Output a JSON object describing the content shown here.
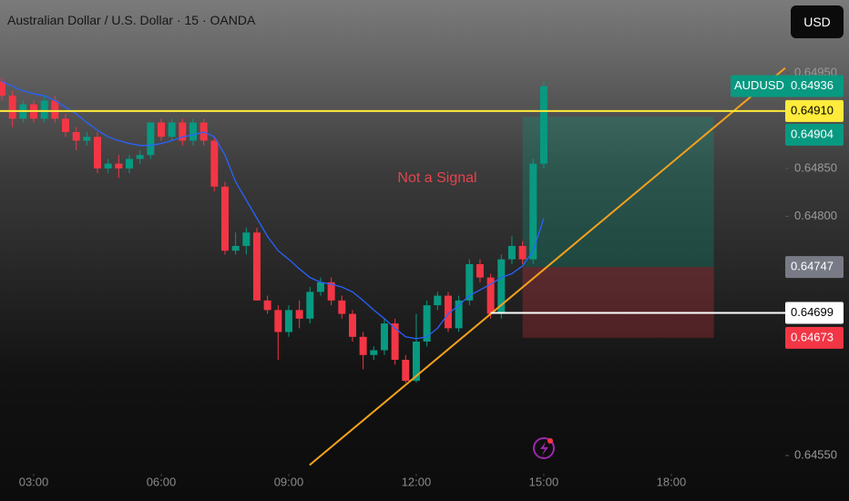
{
  "header": {
    "title": "Australian Dollar / U.S. Dollar · 15 · OANDA",
    "currency_button": "USD"
  },
  "chart_data": {
    "type": "candlestick",
    "symbol": "AUDUSD",
    "x": [
      2.25,
      2.5,
      2.75,
      3,
      3.25,
      3.5,
      3.75,
      4,
      4.25,
      4.5,
      4.75,
      5,
      5.25,
      5.5,
      5.75,
      6,
      6.25,
      6.5,
      6.75,
      7,
      7.25,
      7.5,
      7.75,
      8,
      8.25,
      8.5,
      8.75,
      9,
      9.25,
      9.5,
      9.75,
      10,
      10.25,
      10.5,
      10.75,
      11,
      11.25,
      11.5,
      11.75,
      12,
      12.25,
      12.5,
      12.75,
      13,
      13.25,
      13.5,
      13.75,
      14,
      14.25,
      14.5,
      14.75,
      15
    ],
    "open": [
      0.64941,
      0.64926,
      0.64902,
      0.64917,
      0.64902,
      0.64921,
      0.64902,
      0.64888,
      0.64879,
      0.64883,
      0.6485,
      0.64855,
      0.6485,
      0.6486,
      0.64864,
      0.64898,
      0.64883,
      0.64898,
      0.64879,
      0.64898,
      0.64879,
      0.64831,
      0.64764,
      0.64769,
      0.64783,
      0.64712,
      0.64702,
      0.64679,
      0.64702,
      0.64693,
      0.64721,
      0.64731,
      0.64712,
      0.64698,
      0.64674,
      0.64655,
      0.6466,
      0.64688,
      0.6465,
      0.64628,
      0.64669,
      0.64707,
      0.64717,
      0.64683,
      0.64712,
      0.6475,
      0.64736,
      0.64698,
      0.64755,
      0.64769,
      0.64755,
      0.64855
    ],
    "high": [
      0.64945,
      0.64931,
      0.64921,
      0.64921,
      0.64926,
      0.64926,
      0.64907,
      0.64893,
      0.64888,
      0.64888,
      0.6486,
      0.64864,
      0.64864,
      0.64869,
      0.64898,
      0.64902,
      0.64902,
      0.64902,
      0.64902,
      0.64902,
      0.64883,
      0.64836,
      0.64783,
      0.64788,
      0.64788,
      0.64717,
      0.64707,
      0.64707,
      0.64712,
      0.64726,
      0.64736,
      0.64736,
      0.64717,
      0.64702,
      0.64679,
      0.64664,
      0.64693,
      0.64693,
      0.64655,
      0.64698,
      0.64712,
      0.64721,
      0.64721,
      0.64717,
      0.64755,
      0.64755,
      0.6474,
      0.6476,
      0.64779,
      0.64774,
      0.6486,
      0.64941
    ],
    "low": [
      0.64921,
      0.64893,
      0.64898,
      0.64898,
      0.64898,
      0.64898,
      0.64883,
      0.64869,
      0.64874,
      0.64845,
      0.64845,
      0.6484,
      0.64845,
      0.64855,
      0.6486,
      0.64879,
      0.64879,
      0.64874,
      0.64874,
      0.64874,
      0.64826,
      0.6476,
      0.6476,
      0.6476,
      0.64712,
      0.64698,
      0.6465,
      0.64674,
      0.64683,
      0.64688,
      0.64717,
      0.64707,
      0.64693,
      0.64669,
      0.6464,
      0.6465,
      0.64655,
      0.64645,
      0.64626,
      0.64626,
      0.64664,
      0.64702,
      0.64679,
      0.64679,
      0.64707,
      0.64731,
      0.64693,
      0.64693,
      0.6475,
      0.6475,
      0.6475,
      0.6485
    ],
    "close": [
      0.64926,
      0.64902,
      0.64917,
      0.64902,
      0.64921,
      0.64902,
      0.64888,
      0.64879,
      0.64883,
      0.6485,
      0.64855,
      0.6485,
      0.6486,
      0.64864,
      0.64898,
      0.64883,
      0.64898,
      0.64879,
      0.64898,
      0.64879,
      0.64831,
      0.64764,
      0.64769,
      0.64783,
      0.64712,
      0.64702,
      0.64679,
      0.64702,
      0.64693,
      0.64721,
      0.64731,
      0.64712,
      0.64698,
      0.64674,
      0.64655,
      0.6466,
      0.64688,
      0.6465,
      0.64628,
      0.64669,
      0.64707,
      0.64717,
      0.64683,
      0.64712,
      0.6475,
      0.64736,
      0.64698,
      0.64755,
      0.64769,
      0.64755,
      0.64855,
      0.64936
    ],
    "up_color": "#089981",
    "down_color": "#f23645",
    "moving_average": {
      "color": "#2962ff",
      "values": [
        0.64941,
        0.64936,
        0.64931,
        0.64928,
        0.64926,
        0.64921,
        0.64914,
        0.64907,
        0.64898,
        0.6489,
        0.64883,
        0.64879,
        0.64876,
        0.64874,
        0.64874,
        0.64876,
        0.64879,
        0.64883,
        0.64885,
        0.64888,
        0.64883,
        0.64864,
        0.64836,
        0.64817,
        0.64798,
        0.64779,
        0.64764,
        0.64755,
        0.64745,
        0.64736,
        0.64731,
        0.64729,
        0.64726,
        0.64721,
        0.64712,
        0.64702,
        0.64693,
        0.64683,
        0.64674,
        0.64672,
        0.64674,
        0.64683,
        0.64698,
        0.64707,
        0.64717,
        0.64723,
        0.64729,
        0.64736,
        0.6474,
        0.64748,
        0.64764,
        0.64798
      ]
    },
    "xlim": [
      2.207,
      20.68
    ],
    "xticks": [
      {
        "value": 3,
        "label": "03:00"
      },
      {
        "value": 6,
        "label": "06:00"
      },
      {
        "value": 9,
        "label": "09:00"
      },
      {
        "value": 12,
        "label": "12:00"
      },
      {
        "value": 15,
        "label": "15:00"
      },
      {
        "value": 18,
        "label": "18:00"
      }
    ],
    "ylim": [
      0.64531,
      0.65026
    ],
    "yticks": [
      {
        "value": 0.6495,
        "label": "0.64950"
      },
      {
        "value": 0.6485,
        "label": "0.64850"
      },
      {
        "value": 0.648,
        "label": "0.64800"
      },
      {
        "value": 0.6455,
        "label": "0.64550"
      }
    ],
    "annotation": "Not a Signal",
    "horizontal_line": {
      "value": 0.6491,
      "label": "0.64910",
      "color": "#ffeb3b"
    },
    "trendline": {
      "x": [
        9.49,
        20.68
      ],
      "y": [
        0.6454,
        0.64955
      ],
      "color": "#f7a21b"
    },
    "position": {
      "x": [
        14.5,
        19.0
      ],
      "target": 0.64904,
      "entry": 0.64747,
      "stop": 0.64673
    },
    "level": {
      "x_start": 13.75,
      "value": 0.64699
    },
    "last_price": 0.64936
  }
}
